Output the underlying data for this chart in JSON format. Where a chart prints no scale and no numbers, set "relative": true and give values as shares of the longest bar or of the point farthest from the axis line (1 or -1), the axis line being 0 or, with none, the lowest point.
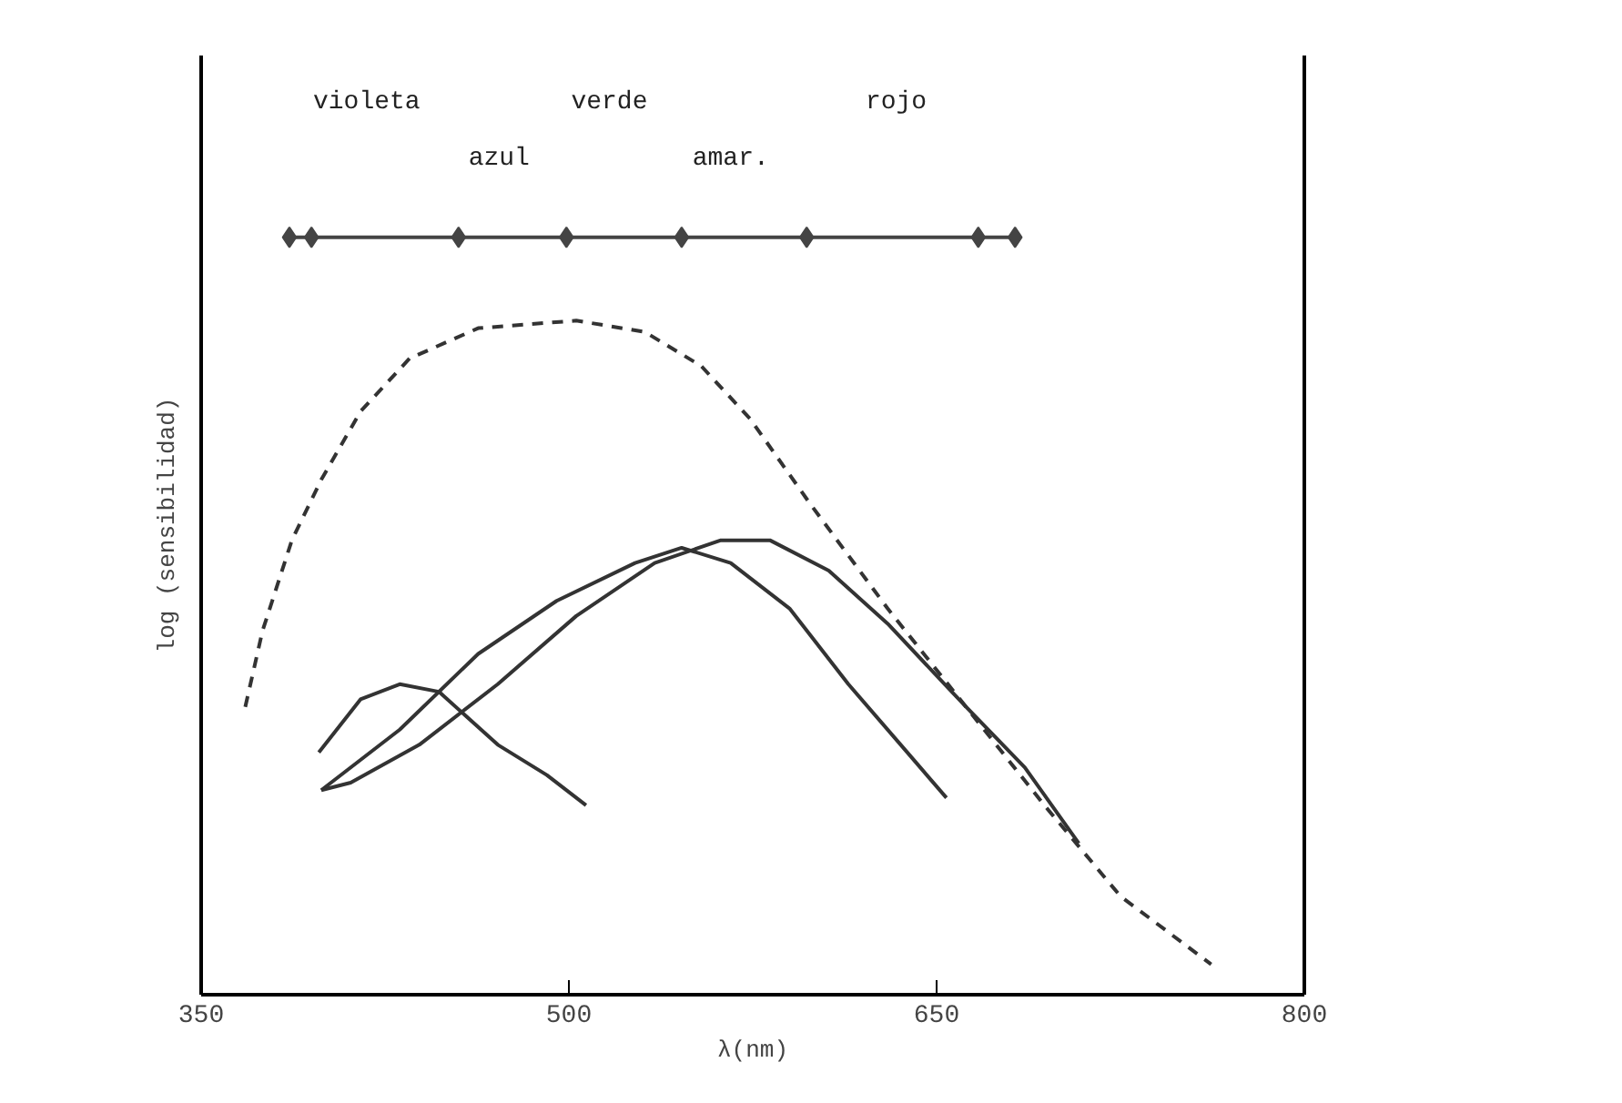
{
  "chart_data": {
    "type": "line",
    "relative": true,
    "xlabel": "λ(nm)",
    "ylabel": "log (sensibilidad)",
    "xlim": [
      350,
      800
    ],
    "xticks": [
      350,
      500,
      650,
      800
    ],
    "grid": false,
    "series": [
      {
        "color": "#333333",
        "line_style": "dashed",
        "x": [
          368,
          375,
          387,
          399,
          415,
          435,
          463,
          503,
          531,
          554,
          574,
          598,
          630,
          662,
          694,
          725,
          762
        ],
        "values": [
          0.38,
          0.48,
          0.6,
          0.68,
          0.77,
          0.84,
          0.88,
          0.89,
          0.875,
          0.83,
          0.76,
          0.65,
          0.51,
          0.38,
          0.25,
          0.13,
          0.04
        ]
      },
      {
        "color": "#333333",
        "line_style": "solid",
        "x": [
          398,
          415,
          431,
          447,
          471,
          491,
          507
        ],
        "values": [
          0.32,
          0.39,
          0.41,
          0.4,
          0.33,
          0.29,
          0.25
        ]
      },
      {
        "color": "#333333",
        "line_style": "solid",
        "x": [
          399,
          431,
          463,
          495,
          527,
          546,
          566,
          590,
          614,
          638,
          654
        ],
        "values": [
          0.27,
          0.35,
          0.45,
          0.52,
          0.57,
          0.59,
          0.57,
          0.51,
          0.41,
          0.32,
          0.26
        ]
      },
      {
        "color": "#333333",
        "line_style": "solid",
        "x": [
          399,
          411,
          439,
          471,
          503,
          535,
          562,
          582,
          606,
          630,
          662,
          686,
          708
        ],
        "values": [
          0.27,
          0.28,
          0.33,
          0.41,
          0.5,
          0.57,
          0.6,
          0.6,
          0.56,
          0.49,
          0.38,
          0.3,
          0.2
        ]
      },
      {
        "color": "#444444",
        "line_style": "solid",
        "marker": "diamond",
        "x": [
          386,
          395,
          455,
          499,
          546,
          597,
          667,
          682
        ],
        "values": [
          1,
          1,
          1,
          1,
          1,
          1,
          1,
          1
        ]
      }
    ],
    "annotations": [
      "violeta",
      "verde",
      "rojo",
      "azul",
      "amar."
    ]
  }
}
